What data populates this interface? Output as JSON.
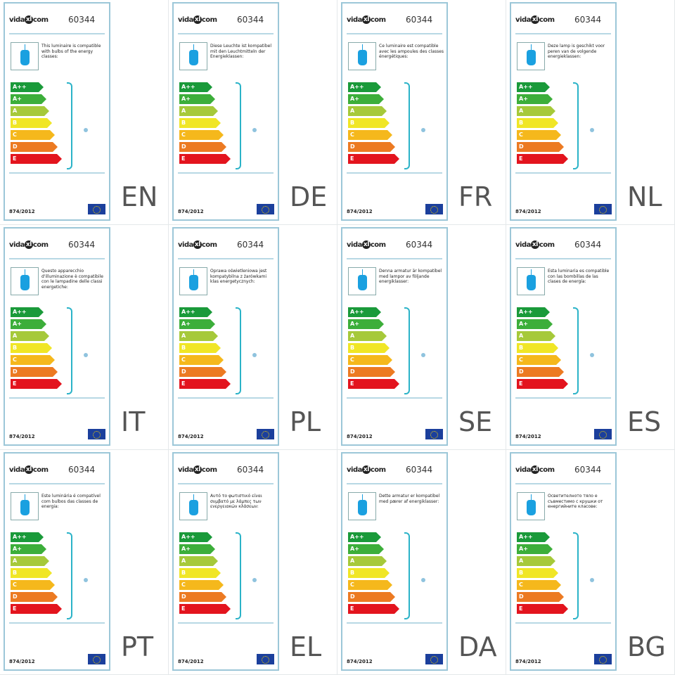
{
  "brand": {
    "logo_text_1": "vida",
    "logo_mark": "xl",
    "logo_text_2": "com"
  },
  "product_id": "60344",
  "regulation": "874/2012",
  "energy_classes": [
    "A++",
    "A+",
    "A",
    "B",
    "C",
    "D",
    "E"
  ],
  "class_colors": [
    "#1a9a3a",
    "#3cae3a",
    "#a6c93a",
    "#f0e626",
    "#f5b81c",
    "#ec7a22",
    "#e3141e"
  ],
  "colors": {
    "bulb": "#1aa0e0",
    "bracket": "#2bb3c8",
    "eu_flag": "#1b3f9c"
  },
  "icons": [
    "pendant-bulb-icon",
    "eu-flag-icon"
  ],
  "labels": [
    {
      "lang": "EN",
      "text": "This luminaire is compatible with bulbs of the energy classes:"
    },
    {
      "lang": "DE",
      "text": "Diese Leuchte ist kompatibel mit den Leuchtmitteln der Energieklassen:"
    },
    {
      "lang": "FR",
      "text": "Ce luminaire est compatible avec les ampoules des classes énergétiques:"
    },
    {
      "lang": "NL",
      "text": "Deze lamp is geschikt voor peren van de volgende energieklassen:"
    },
    {
      "lang": "IT",
      "text": "Questo apparecchio d'illuminazione è compatibile con le lampadine delle classi energetiche:"
    },
    {
      "lang": "PL",
      "text": "Oprawa oświetleniowa jest kompatybilna z żarówkami klas energetycznych:"
    },
    {
      "lang": "SE",
      "text": "Denna armatur är kompatibel med lampor av följande energiklasser:"
    },
    {
      "lang": "ES",
      "text": "Esta luminaria es compatible con las bombillas de las clases de energía:"
    },
    {
      "lang": "PT",
      "text": "Este luminária é compatível com bulbos das classes de energia:"
    },
    {
      "lang": "EL",
      "text": "Αυτό το φωτιστικό είναι συμβατό με λάμπες των ενεργειακών κλάσεων:"
    },
    {
      "lang": "DA",
      "text": "Dette armatur er kompatibel med pærer af energiklasser:"
    },
    {
      "lang": "BG",
      "text": "Осветителното тяло е съвместимо с крушки от енергийните класове:"
    }
  ]
}
